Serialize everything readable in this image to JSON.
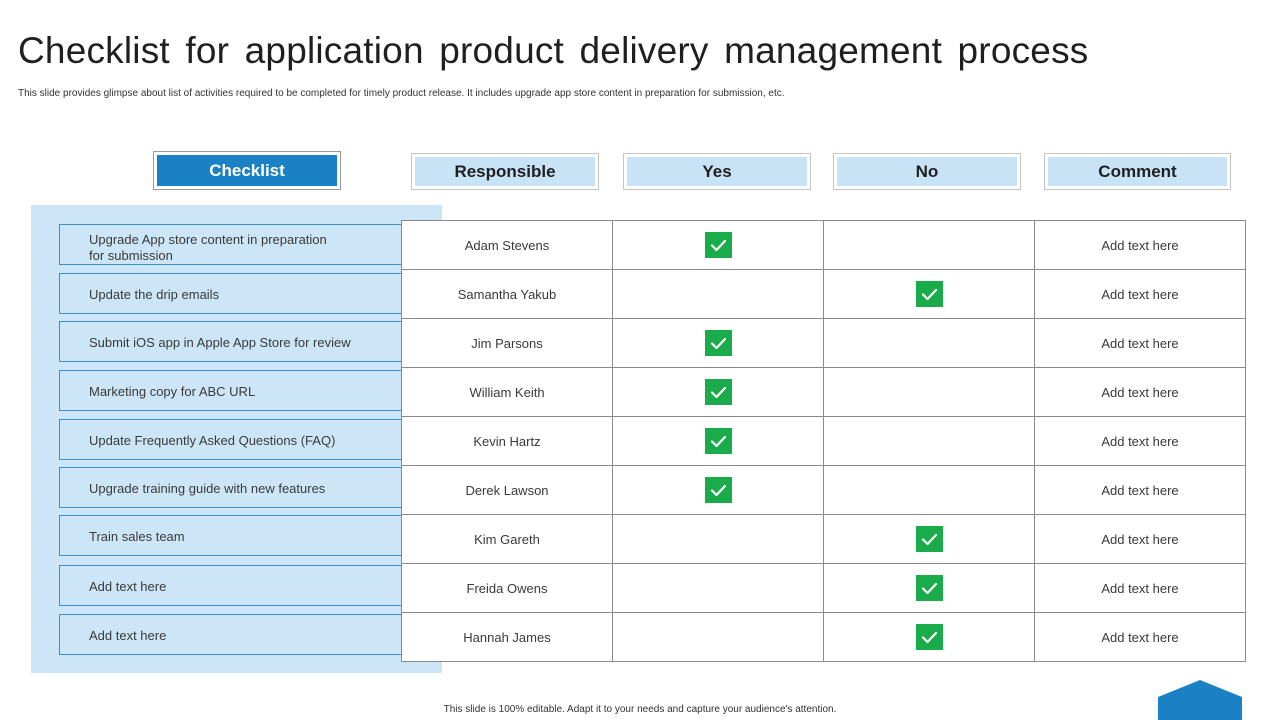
{
  "title": "Checklist for application product delivery management process",
  "subtitle": "This slide provides glimpse about list of activities required to be completed for timely product release. It includes upgrade app store content in preparation for submission, etc.",
  "headers": {
    "checklist": "Checklist",
    "responsible": "Responsible",
    "yes": "Yes",
    "no": "No",
    "comment": "Comment"
  },
  "rows": [
    {
      "task": "Upgrade App store content in preparation for submission",
      "responsible": "Adam Stevens",
      "yes": true,
      "no": false,
      "comment": "Add text here"
    },
    {
      "task": "Update the drip emails",
      "responsible": "Samantha Yakub",
      "yes": false,
      "no": true,
      "comment": "Add text here"
    },
    {
      "task": "Submit iOS app in Apple App Store for review",
      "responsible": "Jim Parsons",
      "yes": true,
      "no": false,
      "comment": "Add text here"
    },
    {
      "task": "Marketing copy for ABC URL",
      "responsible": "William Keith",
      "yes": true,
      "no": false,
      "comment": "Add text here"
    },
    {
      "task": "Update Frequently Asked Questions (FAQ)",
      "responsible": "Kevin Hartz",
      "yes": true,
      "no": false,
      "comment": "Add text here"
    },
    {
      "task": "Upgrade training guide with new features",
      "responsible": "Derek Lawson",
      "yes": true,
      "no": false,
      "comment": "Add text here"
    },
    {
      "task": "Train sales team",
      "responsible": "Kim Gareth",
      "yes": false,
      "no": true,
      "comment": "Add text here"
    },
    {
      "task": "Add text here",
      "responsible": "Freida Owens",
      "yes": false,
      "no": true,
      "comment": "Add text here"
    },
    {
      "task": "Add text here",
      "responsible": "Hannah James",
      "yes": false,
      "no": true,
      "comment": "Add text here"
    }
  ],
  "footer": "This slide is 100% editable. Adapt it to your needs and capture your audience's attention.",
  "colors": {
    "accent": "#1a82c4",
    "header_fill": "#c9e3f6",
    "panel_fill": "#cde6f7",
    "check_green": "#1aab4b"
  },
  "icons": {
    "check": "checkmark-icon",
    "corner": "hexagon-shape"
  }
}
